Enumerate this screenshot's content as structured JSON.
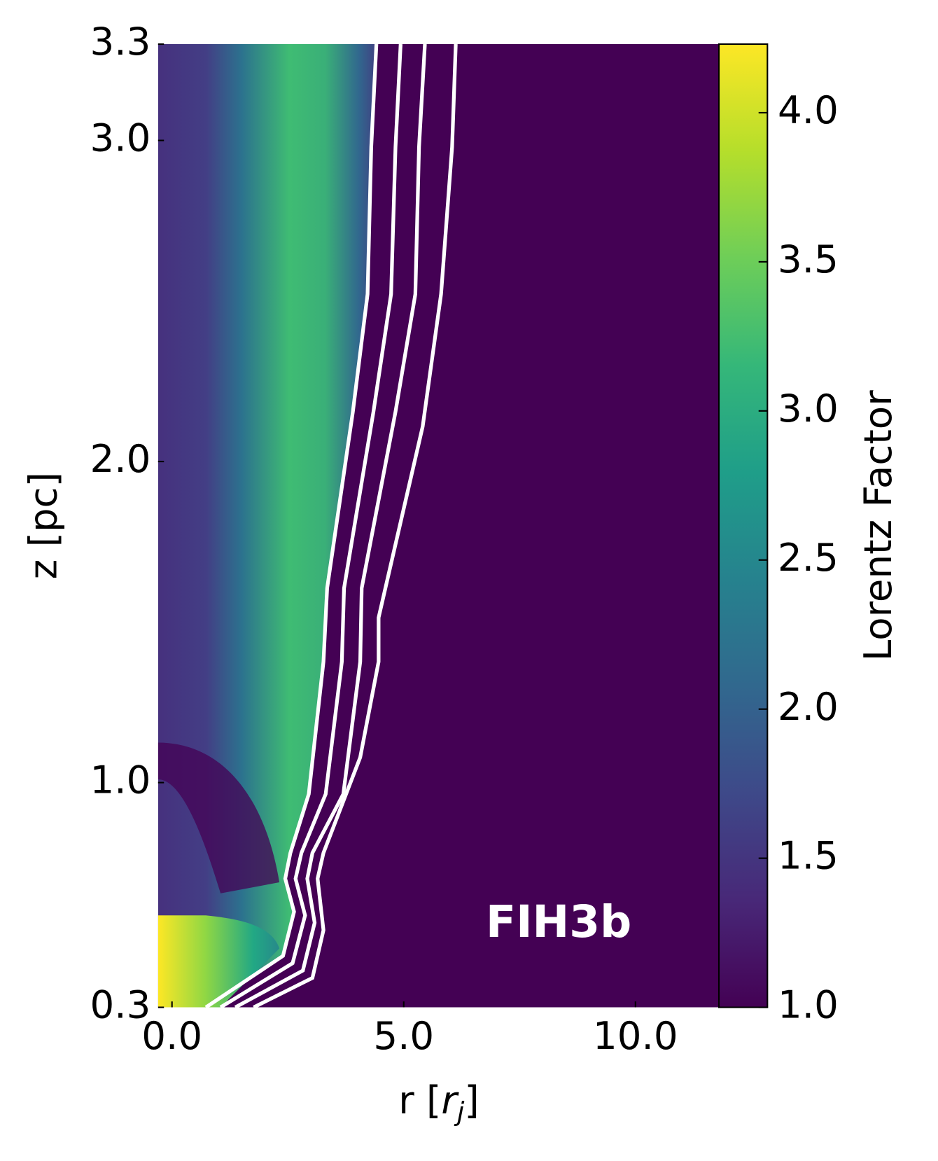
{
  "chart_data": {
    "type": "heatmap",
    "annotation": "FIH3b",
    "xlabel": {
      "text": "r [",
      "var": "r",
      "sub": "j",
      "close": "]"
    },
    "ylabel": "z [pc]",
    "colorbar_label": "Lorentz Factor",
    "xlim": [
      -0.3,
      11.8
    ],
    "xticks": [
      {
        "value": 0,
        "label": "0.0"
      },
      {
        "value": 5,
        "label": "5.0"
      },
      {
        "value": 10,
        "label": "10.0"
      }
    ],
    "ylim": [
      0.3,
      3.3
    ],
    "yticks": [
      0.3,
      {
        "value": 1,
        "label": "1.0"
      },
      {
        "value": 2,
        "label": "2.0"
      },
      {
        "value": 3,
        "label": "3.0"
      },
      3.3
    ],
    "clim": [
      1.0,
      4.23
    ],
    "cticks": [
      {
        "value": 1,
        "label": "1.0"
      },
      {
        "value": 1.5,
        "label": "1.5"
      },
      {
        "value": 2,
        "label": "2.0"
      },
      {
        "value": 2.5,
        "label": "2.5"
      },
      {
        "value": 3,
        "label": "3.0"
      },
      {
        "value": 3.5,
        "label": "3.5"
      },
      {
        "value": 4,
        "label": "4.0"
      }
    ],
    "colormap": [
      "#440154",
      "#482878",
      "#3e4989",
      "#31688e",
      "#26828e",
      "#1f9e89",
      "#35b779",
      "#6ece58",
      "#b5de2b",
      "#fde725"
    ]
  }
}
